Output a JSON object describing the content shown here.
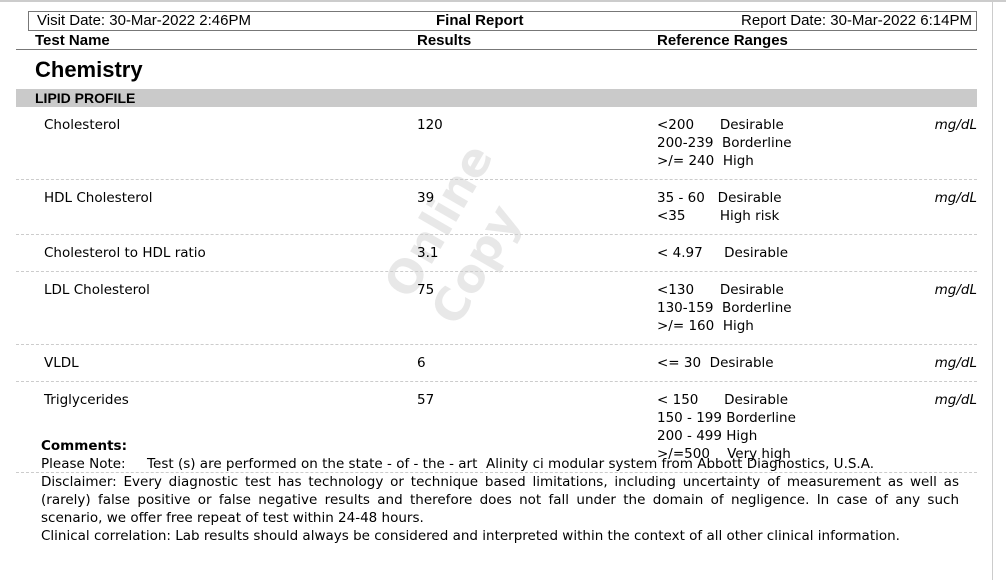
{
  "header": {
    "visit_date": "Visit Date: 30-Mar-2022 2:46PM",
    "title": "Final Report",
    "report_date": "Report Date: 30-Mar-2022 6:14PM"
  },
  "columns": {
    "test_name": "Test Name",
    "results": "Results",
    "reference": "Reference Ranges"
  },
  "department": "Chemistry",
  "section": "LIPID PROFILE",
  "watermark": "Online Copy",
  "tests": [
    {
      "name": "Cholesterol",
      "result": "120",
      "range": "<200      Desirable\n200-239  Borderline\n>/= 240  High",
      "unit": "mg/dL"
    },
    {
      "name": "HDL Cholesterol",
      "result": "39",
      "range": "35 - 60   Desirable\n<35        High risk",
      "unit": "mg/dL"
    },
    {
      "name": "Cholesterol to HDL ratio",
      "result": "3.1",
      "range": "< 4.97     Desirable",
      "unit": ""
    },
    {
      "name": "LDL Cholesterol",
      "result": "75",
      "range": "<130      Desirable\n130-159  Borderline\n>/= 160  High",
      "unit": "mg/dL"
    },
    {
      "name": "VLDL",
      "result": "6",
      "range": "<= 30  Desirable",
      "unit": "mg/dL"
    },
    {
      "name": "Triglycerides",
      "result": "57",
      "range": "< 150      Desirable\n150 - 199 Borderline\n200 - 499 High\n>/=500    Very high",
      "unit": "mg/dL"
    }
  ],
  "comments": {
    "title": "Comments:",
    "lines": [
      "Please Note:     Test (s) are performed on the state - of - the - art  Alinity ci modular system from Abbott Diagnostics, U.S.A.",
      "Disclaimer: Every diagnostic test has technology or technique based limitations, including uncertainty of measurement as well as (rarely) false positive or false negative results and therefore does not fall under the domain of negligence. In case of any such scenario, we offer free repeat of test within 24-48 hours.",
      "Clinical correlation: Lab results should always be considered and interpreted within the context of all other clinical information."
    ]
  }
}
